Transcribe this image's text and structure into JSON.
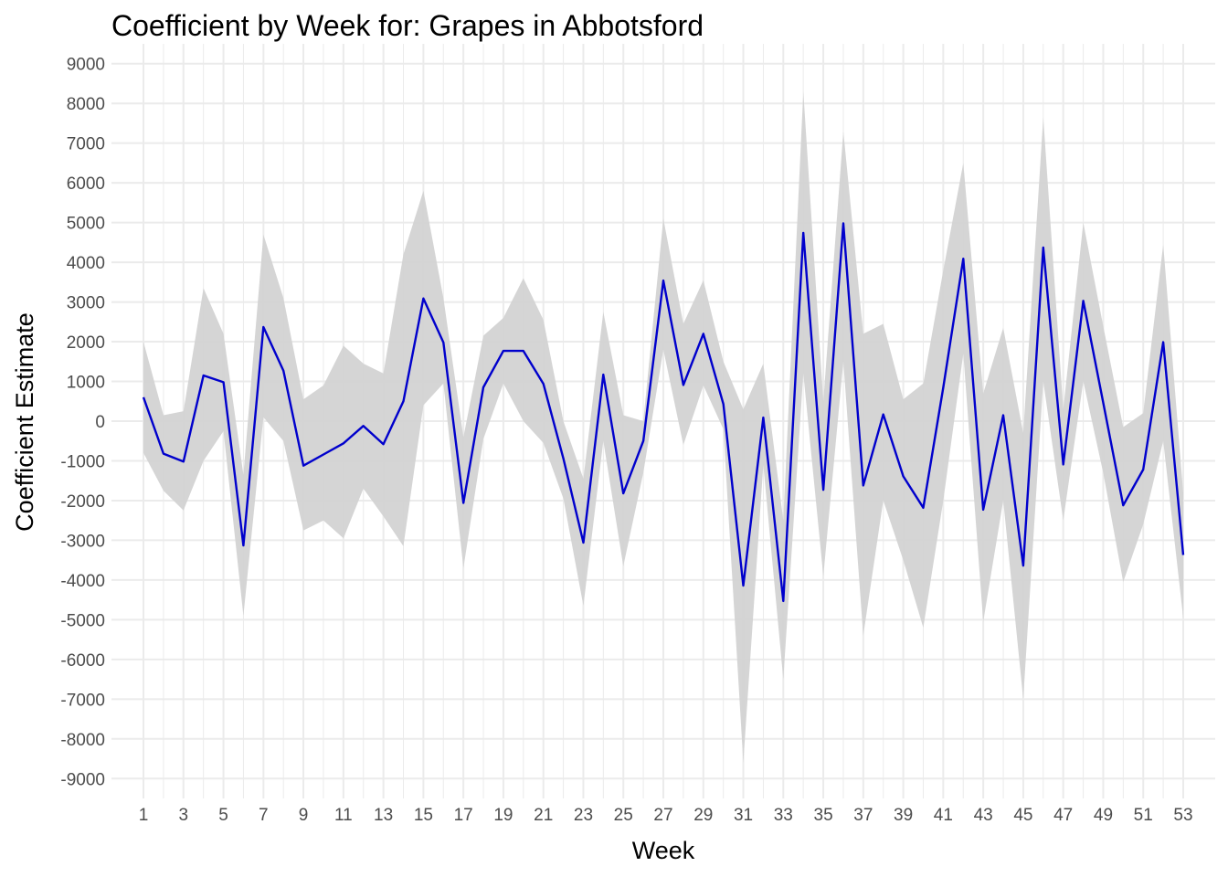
{
  "chart_data": {
    "type": "line",
    "title": "Coefficient by Week for: Grapes in Abbotsford",
    "xlabel": "Week",
    "ylabel": "Coefficient Estimate",
    "x": [
      1,
      2,
      3,
      4,
      5,
      6,
      7,
      8,
      9,
      10,
      11,
      12,
      13,
      14,
      15,
      16,
      17,
      18,
      19,
      20,
      21,
      22,
      23,
      24,
      25,
      26,
      27,
      28,
      29,
      30,
      31,
      32,
      33,
      34,
      35,
      36,
      37,
      38,
      39,
      40,
      41,
      42,
      43,
      44,
      45,
      46,
      47,
      48,
      49,
      50,
      51,
      52,
      53
    ],
    "series": [
      {
        "values": [
          600,
          -820,
          -1020,
          1150,
          980,
          -3130,
          2370,
          1270,
          -1120,
          -840,
          -560,
          -120,
          -580,
          500,
          3090,
          1980,
          -2060,
          850,
          1770,
          1770,
          940,
          -940,
          -3060,
          1170,
          -1820,
          -500,
          3540,
          910,
          2200,
          430,
          -4140,
          90,
          -4530,
          4740,
          -1730,
          4980,
          -1620,
          170,
          -1390,
          -2180,
          850,
          4090,
          -2230,
          150,
          -3640,
          4370,
          -1090,
          3030,
          470,
          -2120,
          -1220,
          1990,
          -3370
        ],
        "lower": [
          -800,
          -1750,
          -2250,
          -1000,
          -250,
          -4900,
          100,
          -500,
          -2750,
          -2500,
          -2950,
          -1700,
          -2400,
          -3150,
          400,
          950,
          -3700,
          -450,
          950,
          0,
          -550,
          -1950,
          -4650,
          -500,
          -3650,
          -1300,
          1800,
          -600,
          900,
          -200,
          -8600,
          -1100,
          -6500,
          1200,
          -3900,
          1500,
          -5400,
          -2000,
          -3500,
          -5200,
          -2000,
          1700,
          -5050,
          -2000,
          -7000,
          1000,
          -2500,
          1000,
          -1300,
          -4050,
          -2600,
          -500,
          -4950
        ],
        "upper": [
          2000,
          150,
          250,
          3350,
          2200,
          -1350,
          4700,
          3100,
          550,
          900,
          1900,
          1450,
          1200,
          4200,
          5800,
          3100,
          -400,
          2150,
          2600,
          3600,
          2550,
          0,
          -1450,
          2750,
          150,
          0,
          5100,
          2450,
          3550,
          1500,
          300,
          1450,
          -2500,
          8300,
          500,
          7300,
          2200,
          2450,
          550,
          950,
          3800,
          6500,
          700,
          2350,
          -300,
          7650,
          300,
          5000,
          2400,
          -150,
          200,
          4450,
          -1800
        ]
      }
    ],
    "xticks": [
      1,
      3,
      5,
      7,
      9,
      11,
      13,
      15,
      17,
      19,
      21,
      23,
      25,
      27,
      29,
      31,
      33,
      35,
      37,
      39,
      41,
      43,
      45,
      47,
      49,
      51,
      53
    ],
    "yticks": [
      -9000,
      -8000,
      -7000,
      -6000,
      -5000,
      -4000,
      -3000,
      -2000,
      -1000,
      0,
      1000,
      2000,
      3000,
      4000,
      5000,
      6000,
      7000,
      8000,
      9000
    ],
    "xlim": [
      -0.6,
      54.6
    ],
    "ylim": [
      -9500,
      9500
    ],
    "grid": true,
    "legend": "none",
    "colors": {
      "line": "#0000cc",
      "ribbon": "#d3d3d3",
      "grid": "#ebebeb"
    }
  }
}
